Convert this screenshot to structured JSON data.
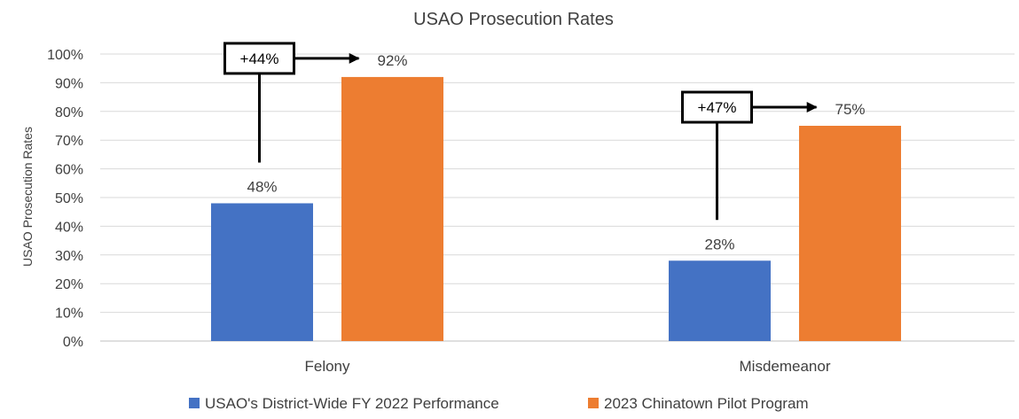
{
  "chart_data": {
    "type": "bar",
    "title": "USAO Prosecution Rates",
    "xlabel": "",
    "ylabel": "USAO Prosecution Rates",
    "categories": [
      "Felony",
      "Misdemeanor"
    ],
    "series": [
      {
        "name": "USAO's District-Wide FY 2022 Performance",
        "values": [
          48,
          28
        ],
        "labels": [
          "48%",
          "28%"
        ],
        "color": "#4472C4"
      },
      {
        "name": "2023 Chinatown Pilot Program",
        "values": [
          92,
          75
        ],
        "labels": [
          "92%",
          "75%"
        ],
        "color": "#ED7D31"
      }
    ],
    "ylim": [
      0,
      100
    ],
    "yticks": [
      "0%",
      "10%",
      "20%",
      "30%",
      "40%",
      "50%",
      "60%",
      "70%",
      "80%",
      "90%",
      "100%"
    ],
    "grid": true,
    "legend_position": "bottom",
    "annotations": [
      {
        "text": "+44%",
        "category": "Felony"
      },
      {
        "text": "+47%",
        "category": "Misdemeanor"
      }
    ]
  }
}
